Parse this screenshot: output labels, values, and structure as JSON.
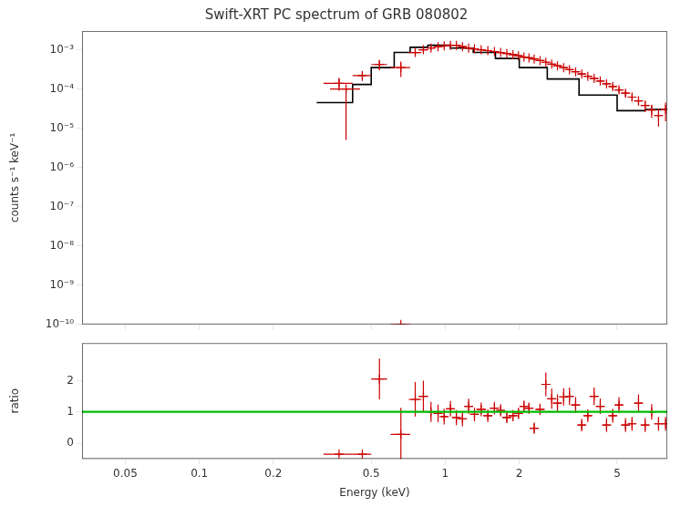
{
  "chart_data": [
    {
      "type": "scatter",
      "title": "Swift-XRT PC spectrum of GRB 080802",
      "ylabel": "counts s⁻¹ keV⁻¹",
      "log": true,
      "xlim": [
        0.03334264,
        7.998342
      ],
      "xticks": [
        0.05,
        0.1,
        0.2,
        0.5,
        1,
        2,
        5
      ],
      "ylim": [
        1e-10,
        0.003
      ],
      "yticks": [
        {
          "value": 1e-10,
          "label": "10⁻¹⁰"
        },
        {
          "value": 1e-09,
          "label": "10⁻⁹"
        },
        {
          "value": 1e-08,
          "label": "10⁻⁸"
        },
        {
          "value": 1e-07,
          "label": "10⁻⁷"
        },
        {
          "value": 1e-06,
          "label": "10⁻⁶"
        },
        {
          "value": 1e-05,
          "label": "10⁻⁵"
        },
        {
          "value": 0.0001,
          "label": "10⁻⁴"
        },
        {
          "value": 0.001,
          "label": "10⁻³"
        }
      ],
      "grid": false,
      "tick_labels": "y",
      "series": [
        {
          "type": "line",
          "color": "#000000",
          "line_style": "solid",
          "x": [
            0.3,
            0.42,
            0.42,
            0.5,
            0.5,
            0.62,
            0.62,
            0.72,
            0.72,
            0.85,
            0.85,
            1.05,
            1.05,
            1.3,
            1.3,
            1.6,
            1.6,
            2.0,
            2.0,
            2.6,
            2.6,
            3.5,
            3.5,
            5.0,
            5.0,
            6.5,
            6.5,
            8.0
          ],
          "values": [
            4.5e-05,
            4.5e-05,
            0.00013,
            0.00013,
            0.00035,
            0.00035,
            0.00085,
            0.00085,
            0.00115,
            0.00115,
            0.0013,
            0.0013,
            0.0011,
            0.0011,
            0.00085,
            0.00085,
            0.0006,
            0.0006,
            0.00035,
            0.00035,
            0.00018,
            0.00018,
            7e-05,
            7e-05,
            2.8e-05,
            2.8e-05,
            3e-05,
            3e-05
          ]
        },
        {
          "type": "scatter",
          "color": "#cc0000",
          "marker": "plus",
          "x": [
            0.37,
            0.46,
            0.54,
            0.66,
            0.755,
            0.815,
            0.875,
            0.935,
            0.99,
            1.05,
            1.11,
            1.175,
            1.245,
            1.315,
            1.4,
            1.49,
            1.585,
            1.68,
            1.78,
            1.885,
            1.985,
            2.09,
            2.19,
            2.3,
            2.43,
            2.565,
            2.71,
            2.86,
            3.03,
            3.2,
            3.39,
            3.59,
            3.8,
            4.03,
            4.27,
            4.53,
            4.8,
            5.09,
            5.41,
            5.75,
            6.11,
            6.5,
            6.91,
            7.37,
            7.87
          ],
          "values": [
            0.00014,
            0.00022,
            0.00042,
            0.00035,
            0.00085,
            0.001,
            0.0011,
            0.0012,
            0.00125,
            0.0013,
            0.0013,
            0.0012,
            0.0011,
            0.00105,
            0.001,
            0.00095,
            0.0009,
            0.00085,
            0.0008,
            0.00075,
            0.0007,
            0.00065,
            0.00062,
            0.00058,
            0.00053,
            0.00048,
            0.00043,
            0.00039,
            0.00035,
            0.00031,
            0.000275,
            0.00024,
            0.00021,
            0.000185,
            0.00016,
            0.000135,
            0.000115,
            9.5e-05,
            7.8e-05,
            6.2e-05,
            5e-05,
            3.8e-05,
            2.9e-05,
            2.1e-05,
            3e-05
          ],
          "xerr_lo": [
            0.05,
            0.04,
            0.04,
            0.06,
            0.045,
            0.035,
            0.035,
            0.035,
            0.03,
            0.04,
            0.04,
            0.045,
            0.045,
            0.045,
            0.06,
            0.06,
            0.065,
            0.065,
            0.07,
            0.075,
            0.075,
            0.08,
            0.08,
            0.09,
            0.1,
            0.1,
            0.1,
            0.11,
            0.12,
            0.12,
            0.13,
            0.13,
            0.14,
            0.15,
            0.15,
            0.16,
            0.17,
            0.18,
            0.2,
            0.21,
            0.22,
            0.24,
            0.25,
            0.27,
            0.35
          ],
          "xerr_hi": [
            0.05,
            0.04,
            0.04,
            0.06,
            0.045,
            0.035,
            0.035,
            0.035,
            0.03,
            0.04,
            0.04,
            0.045,
            0.045,
            0.045,
            0.06,
            0.06,
            0.065,
            0.065,
            0.07,
            0.075,
            0.075,
            0.08,
            0.08,
            0.09,
            0.1,
            0.1,
            0.1,
            0.11,
            0.12,
            0.12,
            0.13,
            0.13,
            0.14,
            0.15,
            0.15,
            0.16,
            0.17,
            0.18,
            0.2,
            0.21,
            0.22,
            0.24,
            0.25,
            0.27,
            0.35
          ],
          "yerr": [
            5e-05,
            6e-05,
            0.00012,
            0.00015,
            0.00015,
            0.00015,
            0.00013,
            0.00012,
            0.00011,
            0.0001,
            0.0001,
            9e-05,
            8e-05,
            8e-05,
            7e-05,
            7e-05,
            6e-05,
            6e-05,
            5e-05,
            5e-05,
            5e-05,
            4e-05,
            4e-05,
            4e-05,
            3.5e-05,
            3.5e-05,
            3e-05,
            3e-05,
            2.8e-05,
            2.5e-05,
            2.5e-05,
            2.2e-05,
            2e-05,
            2e-05,
            1.8e-05,
            1.8e-05,
            1.6e-05,
            1.5e-05,
            1.4e-05,
            1.3e-05,
            1.2e-05,
            1.2e-05,
            1.1e-05,
            1e-05,
            1.5e-05
          ]
        },
        {
          "type": "scatter",
          "color": "#cc0000",
          "marker": "plus",
          "x": [
            0.395,
            0.66
          ],
          "values": [
            0.0001,
            1e-10
          ],
          "xerr": [
            0.055,
            0.06
          ],
          "yerr_lo": [
            9.5e-05,
            0.0
          ],
          "yerr_hi": [
            0.0,
            0.0
          ]
        }
      ]
    },
    {
      "type": "scatter",
      "xlabel": "Energy (keV)",
      "ylabel": "ratio",
      "log": "x",
      "xlim": [
        0.03334264,
        7.998342
      ],
      "xticks": [
        0.05,
        0.1,
        0.2,
        0.5,
        1,
        2,
        5
      ],
      "ylim": [
        -0.5,
        3.2
      ],
      "yticks": [
        0,
        1,
        2
      ],
      "grid": false,
      "series": [
        {
          "type": "scatter",
          "color": "#cc0000",
          "marker": "plus",
          "x": [
            0.37,
            0.46,
            0.54,
            0.66,
            0.755,
            0.815,
            0.875,
            0.935,
            0.99,
            1.05,
            1.11,
            1.175,
            1.245,
            1.315,
            1.4,
            1.49,
            1.585,
            1.68,
            1.78,
            1.885,
            1.985,
            2.09,
            2.19,
            2.3,
            2.43,
            2.565,
            2.71,
            2.86,
            3.03,
            3.2,
            3.39,
            3.59,
            3.8,
            4.03,
            4.27,
            4.53,
            4.8,
            5.09,
            5.41,
            5.75,
            6.11,
            6.5,
            6.91,
            7.37,
            7.87
          ],
          "values": [
            -0.35,
            -0.35,
            2.05,
            0.28,
            1.4,
            1.5,
            1.0,
            0.95,
            0.85,
            1.1,
            0.82,
            0.78,
            1.18,
            0.92,
            1.08,
            0.88,
            1.12,
            1.05,
            0.82,
            0.88,
            0.95,
            1.18,
            1.12,
            0.48,
            1.08,
            1.88,
            1.42,
            1.28,
            1.48,
            1.5,
            1.22,
            0.58,
            0.88,
            1.5,
            1.18,
            0.58,
            0.88,
            1.22,
            0.58,
            0.62,
            1.28,
            0.58,
            1.0,
            0.62,
            0.62
          ],
          "xerr_lo": [
            0.05,
            0.04,
            0.04,
            0.06,
            0.045,
            0.035,
            0.035,
            0.035,
            0.03,
            0.04,
            0.04,
            0.045,
            0.045,
            0.045,
            0.06,
            0.06,
            0.065,
            0.065,
            0.07,
            0.075,
            0.075,
            0.08,
            0.08,
            0.09,
            0.1,
            0.1,
            0.1,
            0.11,
            0.12,
            0.12,
            0.13,
            0.13,
            0.14,
            0.15,
            0.15,
            0.16,
            0.17,
            0.18,
            0.2,
            0.21,
            0.22,
            0.24,
            0.25,
            0.27,
            0.35
          ],
          "xerr_hi": [
            0.05,
            0.04,
            0.04,
            0.06,
            0.045,
            0.035,
            0.035,
            0.035,
            0.03,
            0.04,
            0.04,
            0.045,
            0.045,
            0.045,
            0.06,
            0.06,
            0.065,
            0.065,
            0.07,
            0.075,
            0.075,
            0.08,
            0.08,
            0.09,
            0.1,
            0.1,
            0.1,
            0.11,
            0.12,
            0.12,
            0.13,
            0.13,
            0.14,
            0.15,
            0.15,
            0.16,
            0.17,
            0.18,
            0.2,
            0.21,
            0.22,
            0.24,
            0.25,
            0.27,
            0.35
          ],
          "yerr": [
            0.04,
            0.04,
            0.65,
            0.85,
            0.55,
            0.5,
            0.32,
            0.28,
            0.25,
            0.25,
            0.24,
            0.24,
            0.24,
            0.22,
            0.22,
            0.2,
            0.2,
            0.2,
            0.18,
            0.18,
            0.18,
            0.18,
            0.18,
            0.18,
            0.18,
            0.38,
            0.32,
            0.28,
            0.28,
            0.28,
            0.25,
            0.2,
            0.2,
            0.28,
            0.25,
            0.22,
            0.22,
            0.25,
            0.22,
            0.22,
            0.28,
            0.22,
            0.25,
            0.22,
            0.22
          ]
        },
        {
          "type": "hline",
          "color": "#00bb00",
          "values": [
            1
          ]
        }
      ]
    }
  ]
}
